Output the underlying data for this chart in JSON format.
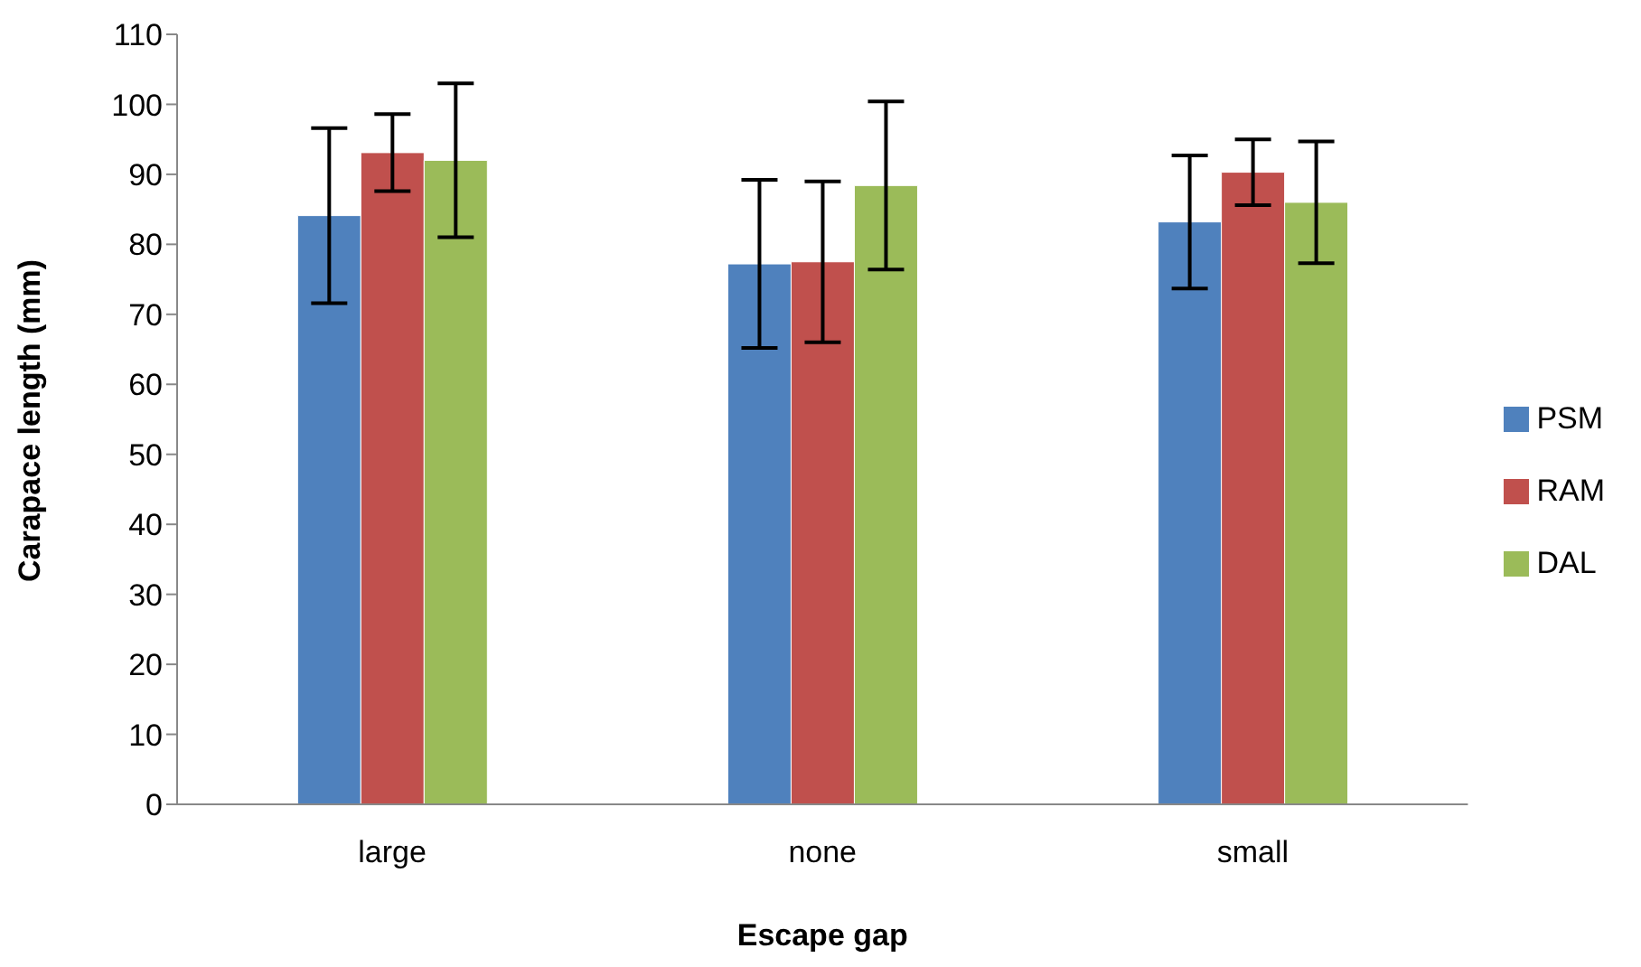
{
  "chart_data": {
    "type": "bar",
    "xlabel": "Escape gap",
    "ylabel": "Carapace length (mm)",
    "categories": [
      "large",
      "none",
      "small"
    ],
    "series": [
      {
        "name": "PSM",
        "color": "#4f81bd",
        "values": [
          84.1,
          77.2,
          83.2
        ],
        "errors": [
          12.5,
          12,
          9.5
        ]
      },
      {
        "name": "RAM",
        "color": "#c0504d",
        "values": [
          93.1,
          77.5,
          90.3
        ],
        "errors": [
          5.5,
          11.5,
          4.7
        ]
      },
      {
        "name": "DAL",
        "color": "#9bbb59",
        "values": [
          92,
          88.4,
          86
        ],
        "errors": [
          11,
          12,
          8.7
        ]
      }
    ],
    "ylim": [
      0,
      110
    ],
    "yticks": [
      0,
      10,
      20,
      30,
      40,
      50,
      60,
      70,
      80,
      90,
      100,
      110
    ],
    "grid": false,
    "legend": "right"
  }
}
